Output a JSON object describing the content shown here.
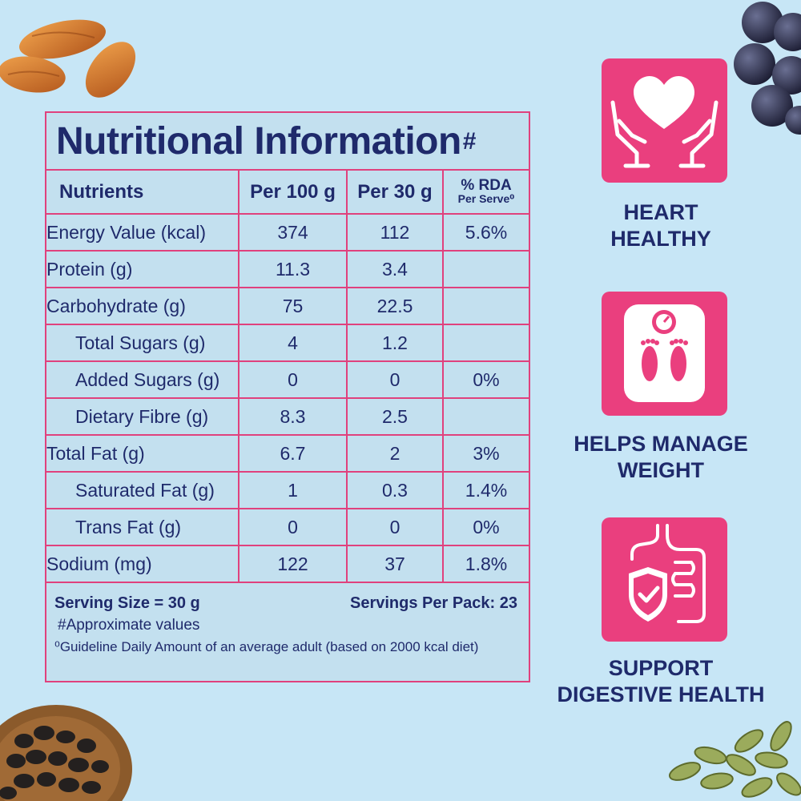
{
  "table": {
    "title": "Nutritional Information",
    "title_mark": "#",
    "headers": {
      "nutrients": "Nutrients",
      "per100": "Per 100 g",
      "per30": "Per 30 g",
      "rda": "% RDA",
      "rda_sub": "Per Serve⁰"
    },
    "rows": [
      {
        "name": "Energy Value (kcal)",
        "per100": "374",
        "per30": "112",
        "rda": "5.6%"
      },
      {
        "name": "Protein (g)",
        "per100": "11.3",
        "per30": "3.4",
        "rda": ""
      },
      {
        "name": "Carbohydrate (g)",
        "per100": "75",
        "per30": "22.5",
        "rda": ""
      },
      {
        "name": "Total Sugars (g)",
        "per100": "4",
        "per30": "1.2",
        "rda": ""
      },
      {
        "name": "Added Sugars (g)",
        "per100": "0",
        "per30": "0",
        "rda": "0%"
      },
      {
        "name": "Dietary Fibre (g)",
        "per100": "8.3",
        "per30": "2.5",
        "rda": ""
      },
      {
        "name": "Total Fat (g)",
        "per100": "6.7",
        "per30": "2",
        "rda": "3%"
      },
      {
        "name": "Saturated Fat (g)",
        "per100": "1",
        "per30": "0.3",
        "rda": "1.4%"
      },
      {
        "name": "Trans Fat (g)",
        "per100": "0",
        "per30": "0",
        "rda": "0%"
      },
      {
        "name": "Sodium (mg)",
        "per100": "122",
        "per30": "37",
        "rda": "1.8%"
      }
    ],
    "footer": {
      "serving_size": "Serving Size = 30 g",
      "servings_per_pack": "Servings Per Pack: 23",
      "approx_note": "#Approximate values",
      "gda_note": "⁰Guideline Daily Amount of an average adult (based on 2000 kcal diet)"
    }
  },
  "benefits": [
    {
      "icon": "heart-hands-icon",
      "line1": "HEART",
      "line2": "HEALTHY"
    },
    {
      "icon": "weighing-scale-icon",
      "line1": "HELPS MANAGE",
      "line2": "WEIGHT"
    },
    {
      "icon": "digestive-shield-icon",
      "line1": "SUPPORT",
      "line2": "DIGESTIVE HEALTH"
    }
  ],
  "colors": {
    "background": "#c7e6f6",
    "accent_pink": "#ea3f7e",
    "text_navy": "#1f2a6b"
  },
  "decorations": [
    "almonds",
    "grapes",
    "raisin-bowl",
    "pumpkin-seeds"
  ]
}
